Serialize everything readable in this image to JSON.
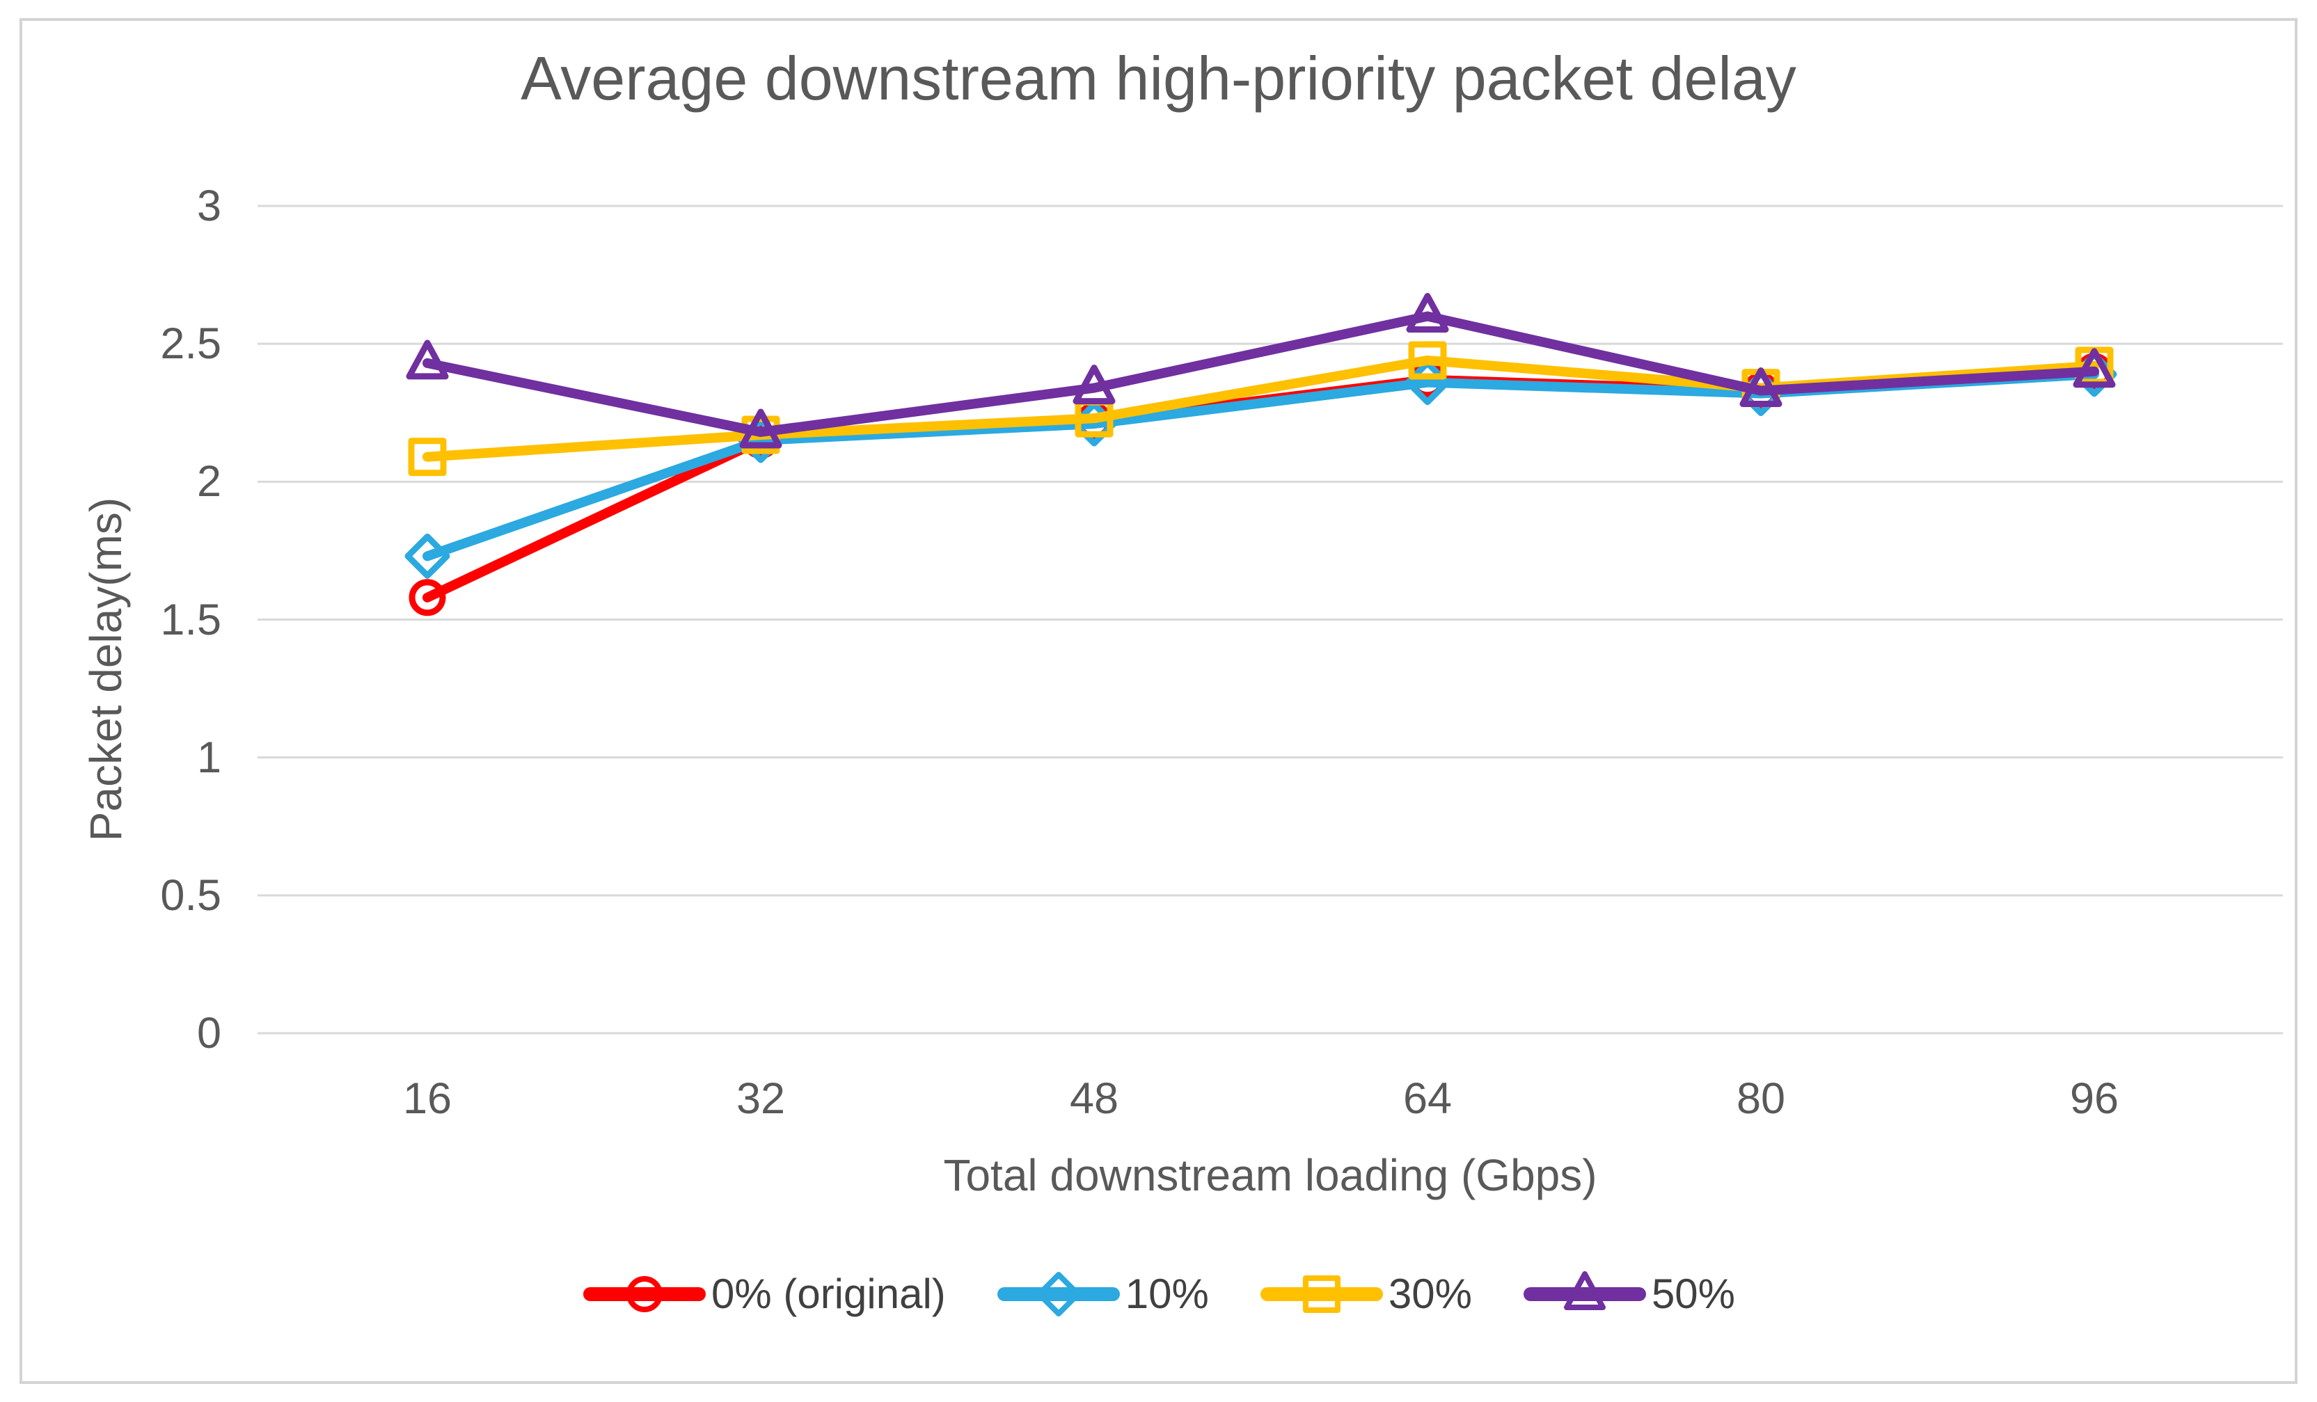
{
  "figure": {
    "title": "Average downstream high-priority packet delay"
  },
  "chart_data": {
    "type": "line",
    "title": "Average downstream high-priority packet delay",
    "xlabel": "Total downstream loading (Gbps)",
    "ylabel": "Packet delay(ms)",
    "categories": [
      "16",
      "32",
      "48",
      "64",
      "80",
      "96"
    ],
    "yticks": [
      0,
      0.5,
      1,
      1.5,
      2,
      2.5,
      3
    ],
    "ytick_labels": [
      "0",
      "0.5",
      "1",
      "1.5",
      "2",
      "2.5",
      "3"
    ],
    "ylim": [
      0,
      3
    ],
    "grid": "horizontal",
    "legend_position": "bottom",
    "series": [
      {
        "id": "0-percent-original",
        "name": "0% (original)",
        "color": "#FF0000",
        "marker": "circle",
        "values": [
          1.58,
          2.15,
          2.22,
          2.37,
          2.33,
          2.4
        ]
      },
      {
        "id": "10-percent",
        "name": "10%",
        "color": "#2BA9E0",
        "marker": "diamond",
        "values": [
          1.73,
          2.15,
          2.21,
          2.36,
          2.32,
          2.39
        ]
      },
      {
        "id": "30-percent",
        "name": "30%",
        "color": "#FFC000",
        "marker": "square",
        "values": [
          2.09,
          2.17,
          2.23,
          2.44,
          2.34,
          2.42
        ]
      },
      {
        "id": "50-percent",
        "name": "50%",
        "color": "#7030A0",
        "marker": "triangle",
        "values": [
          2.43,
          2.18,
          2.34,
          2.6,
          2.33,
          2.4
        ]
      }
    ],
    "colors": {
      "gridline": "#D9D9D9",
      "axis_text": "#595959",
      "legend_text": "#404040",
      "frame_border": "#D4D4D4",
      "background": "#FFFFFF"
    }
  }
}
